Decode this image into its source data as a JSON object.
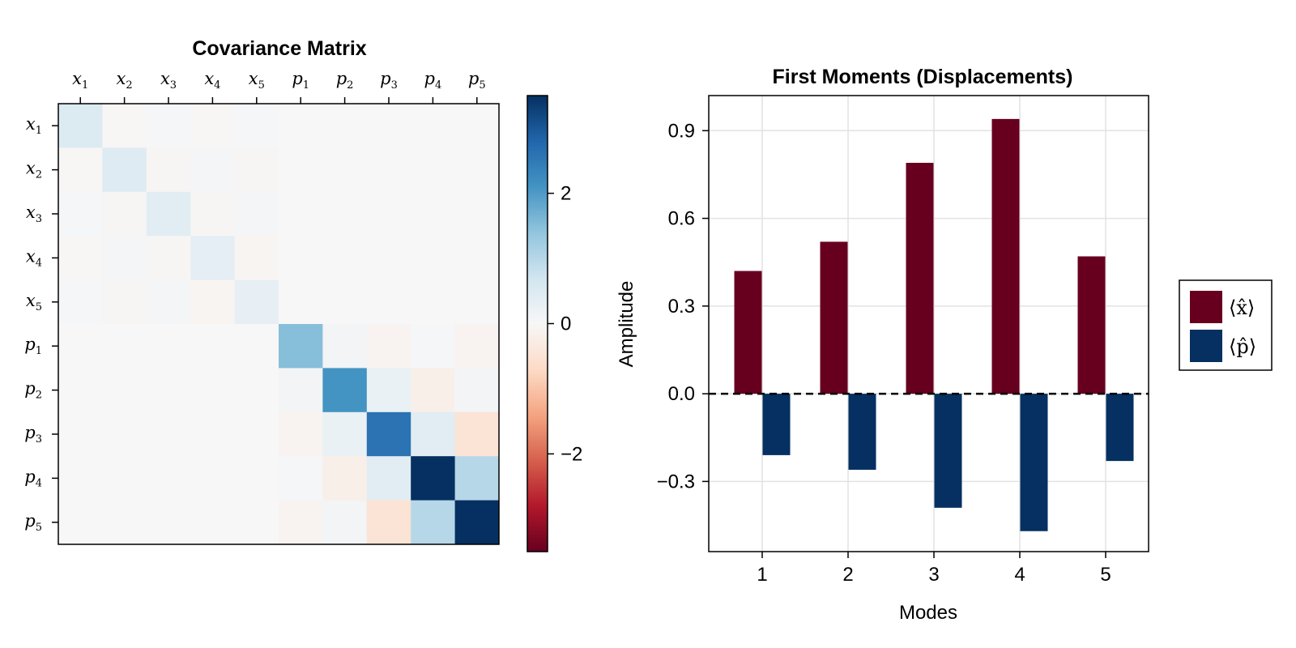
{
  "chart_data": [
    {
      "type": "heatmap",
      "title": "Covariance Matrix",
      "labels": [
        {
          "base": "x",
          "sub": "1"
        },
        {
          "base": "x",
          "sub": "2"
        },
        {
          "base": "x",
          "sub": "3"
        },
        {
          "base": "x",
          "sub": "4"
        },
        {
          "base": "x",
          "sub": "5"
        },
        {
          "base": "p",
          "sub": "1"
        },
        {
          "base": "p",
          "sub": "2"
        },
        {
          "base": "p",
          "sub": "3"
        },
        {
          "base": "p",
          "sub": "4"
        },
        {
          "base": "p",
          "sub": "5"
        }
      ],
      "matrix": [
        [
          0.5,
          -0.03,
          0.05,
          -0.03,
          0.04,
          0,
          0,
          0,
          0,
          0
        ],
        [
          -0.03,
          0.45,
          -0.04,
          0.06,
          -0.05,
          0,
          0,
          0,
          0,
          0
        ],
        [
          0.05,
          -0.04,
          0.4,
          -0.05,
          0.06,
          0,
          0,
          0,
          0,
          0
        ],
        [
          -0.03,
          0.06,
          -0.05,
          0.35,
          -0.07,
          0,
          0,
          0,
          0,
          0
        ],
        [
          0.04,
          -0.05,
          0.06,
          -0.07,
          0.3,
          0,
          0,
          0,
          0,
          0
        ],
        [
          0,
          0,
          0,
          0,
          0,
          1.5,
          0.1,
          -0.1,
          0.05,
          -0.1
        ],
        [
          0,
          0,
          0,
          0,
          0,
          0.1,
          2.1,
          0.25,
          -0.2,
          0.1
        ],
        [
          0,
          0,
          0,
          0,
          0,
          -0.1,
          0.25,
          2.6,
          0.4,
          -0.5
        ],
        [
          0,
          0,
          0,
          0,
          0,
          0.05,
          -0.2,
          0.4,
          3.5,
          1.0
        ],
        [
          0,
          0,
          0,
          0,
          0,
          -0.1,
          0.1,
          -0.5,
          1.0,
          3.5
        ]
      ],
      "colorbar": {
        "limits": [
          -3.5,
          3.5
        ],
        "ticks": [
          -2,
          0,
          2
        ],
        "tick_labels": [
          "−2",
          "0",
          "2"
        ],
        "colormap": "RdBu",
        "stops": [
          "#67001f",
          "#b2182b",
          "#d6604d",
          "#f4a582",
          "#fddbc7",
          "#f7f7f7",
          "#d1e5f0",
          "#92c5de",
          "#4393c3",
          "#2166ac",
          "#053061"
        ]
      }
    },
    {
      "type": "bar",
      "title": "First Moments (Displacements)",
      "xlabel": "Modes",
      "ylabel": "Amplitude",
      "categories": [
        "1",
        "2",
        "3",
        "4",
        "5"
      ],
      "series": [
        {
          "name": "⟨x̂⟩",
          "base": "x",
          "color": "#67001f",
          "values": [
            0.42,
            0.52,
            0.79,
            0.94,
            0.47
          ]
        },
        {
          "name": "⟨p̂⟩",
          "base": "p",
          "color": "#053061",
          "values": [
            -0.21,
            -0.26,
            -0.39,
            -0.47,
            -0.23
          ]
        }
      ],
      "ylim": [
        -0.54,
        1.02
      ],
      "yticks": [
        -0.3,
        0.0,
        0.3,
        0.6,
        0.9
      ],
      "ytick_labels": [
        "−0.3",
        "0.0",
        "0.3",
        "0.6",
        "0.9"
      ],
      "grid": true,
      "zero_line": "dashed",
      "legend": "right"
    }
  ]
}
